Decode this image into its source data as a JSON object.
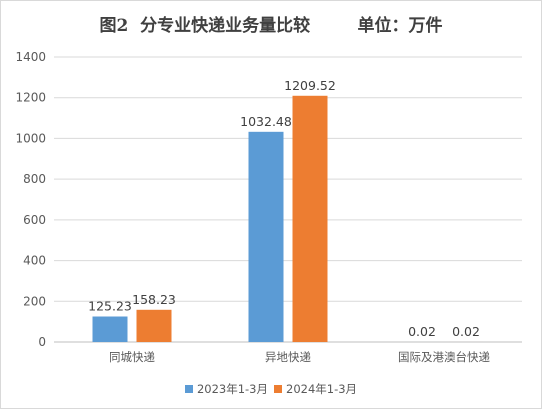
{
  "title": "图2  分专业快递业务量比较        单位：万件",
  "chart_data": {
    "type": "bar",
    "title": "图2  分专业快递业务量比较        单位：万件",
    "categories": [
      "同城快递",
      "异地快递",
      "国际及港澳台快递"
    ],
    "series": [
      {
        "name": "2023年1-3月",
        "color": "#5b9bd5",
        "values": [
          125.23,
          1032.48,
          0.02
        ],
        "labels": [
          "125.23",
          "1032.48",
          "0.02"
        ]
      },
      {
        "name": "2024年1-3月",
        "color": "#ed7d31",
        "values": [
          158.23,
          1209.52,
          0.02
        ],
        "labels": [
          "158.23",
          "1209.52",
          "0.02"
        ]
      }
    ],
    "ylim": [
      0,
      1400
    ],
    "yticks": [
      0,
      200,
      400,
      600,
      800,
      1000,
      1200,
      1400
    ],
    "grid": true,
    "legend": "bottom"
  }
}
